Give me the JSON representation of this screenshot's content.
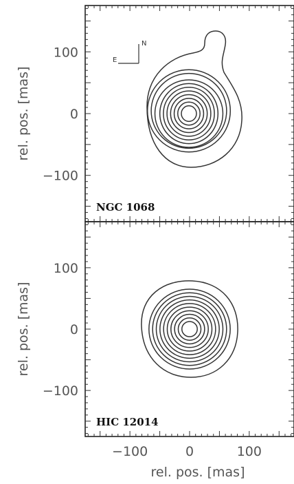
{
  "chart_data": {
    "type": "contour",
    "xlabel": "rel. pos. [mas]",
    "xlim": [
      -175,
      175
    ],
    "xticks": [
      -100,
      0,
      100
    ],
    "panels": [
      {
        "label": "NGC 1068",
        "ylabel": "rel. pos. [mas]",
        "ylim": [
          -175,
          175
        ],
        "yticks": [
          -100,
          0,
          100
        ],
        "orientation": {
          "east": "E",
          "north": "N"
        },
        "contour_levels": 11,
        "center": [
          0,
          0
        ]
      },
      {
        "label": "HIC 12014",
        "ylabel": "rel. pos. [mas]",
        "ylim": [
          -175,
          175
        ],
        "yticks": [
          -100,
          0,
          100
        ],
        "contour_levels": 11,
        "center": [
          0,
          0
        ]
      }
    ]
  }
}
